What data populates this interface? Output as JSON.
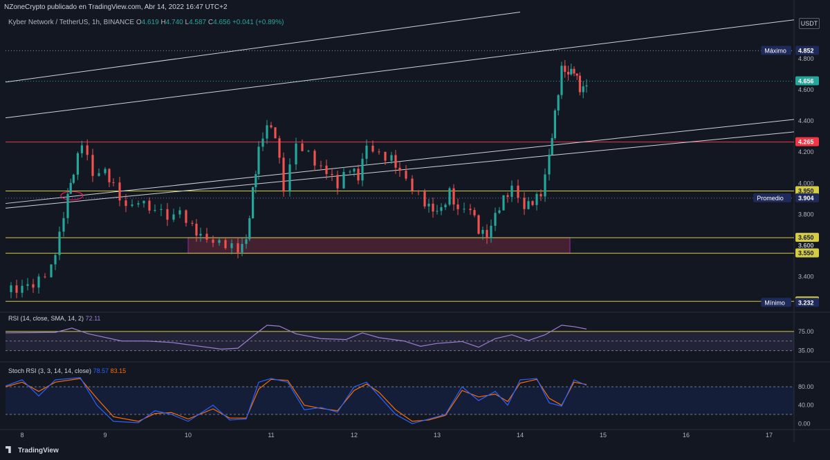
{
  "header": {
    "author_line": "NZoneCrypto publicado en TradingView.com, Abr 14, 2022 16:47 UTC+2"
  },
  "symbol": {
    "name": "Kyber Network / TetherUS, 1h, BINANCE",
    "o_label": "O",
    "o": "4.619",
    "h_label": "H",
    "h": "4.740",
    "l_label": "L",
    "l": "4.587",
    "c_label": "C",
    "c": "4.656",
    "change": "+0.041 (+0.89%)"
  },
  "currency_label": "USDT",
  "footer": {
    "brand": "TradingView"
  },
  "colors": {
    "background": "#131722",
    "up": "#26a69a",
    "down": "#ef5350",
    "yellow": "#d4cc45",
    "red_line": "#f23645",
    "zone": "#6b2a3d",
    "rsi": "#9b7fd4",
    "stoch_k": "#2962ff",
    "stoch_d": "#ff6d00"
  },
  "rsi": {
    "label": "RSI (14, close, SMA, 14, 2)",
    "value": "72.11",
    "ticks": [
      "75.00",
      "35.00"
    ]
  },
  "stoch": {
    "label": "Stoch RSI (3, 3, 14, 14, close)",
    "k_value": "78.57",
    "d_value": "83.15",
    "ticks": [
      "80.00",
      "40.00",
      "0.00"
    ]
  },
  "chart_data": {
    "type": "candlestick",
    "title": "",
    "ylim": [
      3.18,
      5.0
    ],
    "y_ticks": [
      3.4,
      3.6,
      3.8,
      4.0,
      4.2,
      4.4,
      4.6,
      4.8
    ],
    "x_tick_labels": [
      "8",
      "9",
      "10",
      "11",
      "12",
      "13",
      "14",
      "15",
      "16",
      "17"
    ],
    "x_range_days": [
      7.8,
      17.3
    ],
    "price_labels": [
      {
        "label": "Máximo",
        "value": "4.852",
        "style": "dark"
      },
      {
        "label": "",
        "value": "4.656",
        "style": "teal"
      },
      {
        "label": "",
        "value": "4.265",
        "style": "red"
      },
      {
        "label": "",
        "value": "3.950",
        "style": "yellow"
      },
      {
        "label": "Promedio",
        "value": "3.904",
        "style": "dark"
      },
      {
        "label": "",
        "value": "3.650",
        "style": "yellow"
      },
      {
        "label": "",
        "value": "3.600",
        "style": "plain"
      },
      {
        "label": "",
        "value": "3.550",
        "style": "yellow"
      },
      {
        "label": "",
        "value": "3.241",
        "style": "yellow"
      },
      {
        "label": "Mínimo",
        "value": "3.232",
        "style": "dark"
      }
    ],
    "horizontal_lines": [
      {
        "value": 4.265,
        "color": "red"
      },
      {
        "value": 3.95,
        "color": "yellow"
      },
      {
        "value": 3.65,
        "color": "yellow"
      },
      {
        "value": 3.55,
        "color": "yellow"
      },
      {
        "value": 3.241,
        "color": "yellow"
      }
    ],
    "zone": {
      "x": [
        10.0,
        14.6
      ],
      "y": [
        3.55,
        3.65
      ]
    },
    "trendlines": [
      {
        "from": [
          7.8,
          4.65
        ],
        "to": [
          14.0,
          5.1
        ]
      },
      {
        "from": [
          7.8,
          4.42
        ],
        "to": [
          17.3,
          5.05
        ]
      },
      {
        "from": [
          7.8,
          3.87
        ],
        "to": [
          17.3,
          4.41
        ]
      },
      {
        "from": [
          7.8,
          3.84
        ],
        "to": [
          17.3,
          4.33
        ]
      }
    ],
    "series": [
      {
        "name": "",
        "values": [
          [
            7.8,
            3.3
          ],
          [
            8.0,
            3.34
          ],
          [
            8.2,
            3.37
          ],
          [
            8.35,
            3.48
          ],
          [
            8.45,
            3.66
          ],
          [
            8.55,
            3.9
          ],
          [
            8.62,
            4.05
          ],
          [
            8.72,
            4.27
          ],
          [
            8.85,
            4.08
          ],
          [
            9.0,
            4.1
          ],
          [
            9.1,
            3.98
          ],
          [
            9.25,
            3.82
          ],
          [
            9.4,
            3.86
          ],
          [
            9.6,
            3.84
          ],
          [
            9.75,
            3.8
          ],
          [
            9.9,
            3.84
          ],
          [
            10.05,
            3.72
          ],
          [
            10.15,
            3.64
          ],
          [
            10.3,
            3.6
          ],
          [
            10.45,
            3.6
          ],
          [
            10.6,
            3.59
          ],
          [
            10.7,
            3.66
          ],
          [
            10.78,
            3.96
          ],
          [
            10.85,
            4.2
          ],
          [
            10.95,
            4.35
          ],
          [
            11.05,
            4.3
          ],
          [
            11.15,
            3.98
          ],
          [
            11.3,
            4.28
          ],
          [
            11.45,
            4.2
          ],
          [
            11.6,
            4.08
          ],
          [
            11.8,
            4.0
          ],
          [
            11.95,
            4.08
          ],
          [
            12.05,
            4.05
          ],
          [
            12.15,
            4.27
          ],
          [
            12.3,
            4.2
          ],
          [
            12.45,
            4.15
          ],
          [
            12.55,
            4.05
          ],
          [
            12.7,
            3.95
          ],
          [
            12.85,
            3.88
          ],
          [
            12.95,
            3.85
          ],
          [
            13.05,
            3.85
          ],
          [
            13.15,
            3.94
          ],
          [
            13.25,
            3.8
          ],
          [
            13.4,
            3.82
          ],
          [
            13.5,
            3.7
          ],
          [
            13.6,
            3.68
          ],
          [
            13.7,
            3.82
          ],
          [
            13.8,
            3.9
          ],
          [
            13.9,
            3.95
          ],
          [
            14.05,
            3.82
          ],
          [
            14.15,
            3.88
          ],
          [
            14.25,
            3.95
          ],
          [
            14.35,
            4.2
          ],
          [
            14.42,
            4.45
          ],
          [
            14.5,
            4.72
          ],
          [
            14.58,
            4.68
          ],
          [
            14.65,
            4.72
          ],
          [
            14.72,
            4.62
          ],
          [
            14.8,
            4.65
          ]
        ]
      }
    ],
    "rsi_series": [
      [
        7.8,
        72
      ],
      [
        8.4,
        73
      ],
      [
        8.6,
        82
      ],
      [
        8.8,
        70
      ],
      [
        9.2,
        55
      ],
      [
        9.5,
        55
      ],
      [
        9.8,
        52
      ],
      [
        10.1,
        45
      ],
      [
        10.4,
        38
      ],
      [
        10.6,
        40
      ],
      [
        10.8,
        68
      ],
      [
        10.95,
        88
      ],
      [
        11.1,
        86
      ],
      [
        11.3,
        70
      ],
      [
        11.6,
        60
      ],
      [
        11.9,
        58
      ],
      [
        12.1,
        72
      ],
      [
        12.3,
        62
      ],
      [
        12.6,
        55
      ],
      [
        12.8,
        44
      ],
      [
        13.0,
        50
      ],
      [
        13.3,
        54
      ],
      [
        13.5,
        42
      ],
      [
        13.7,
        60
      ],
      [
        13.9,
        68
      ],
      [
        14.1,
        56
      ],
      [
        14.3,
        68
      ],
      [
        14.5,
        88
      ],
      [
        14.65,
        85
      ],
      [
        14.8,
        80
      ]
    ],
    "stoch_k_series": [
      [
        7.8,
        82
      ],
      [
        8.0,
        95
      ],
      [
        8.2,
        60
      ],
      [
        8.4,
        95
      ],
      [
        8.7,
        100
      ],
      [
        8.9,
        40
      ],
      [
        9.1,
        5
      ],
      [
        9.4,
        2
      ],
      [
        9.6,
        28
      ],
      [
        9.8,
        20
      ],
      [
        10.0,
        5
      ],
      [
        10.3,
        40
      ],
      [
        10.5,
        8
      ],
      [
        10.7,
        10
      ],
      [
        10.85,
        90
      ],
      [
        11.0,
        98
      ],
      [
        11.2,
        90
      ],
      [
        11.4,
        30
      ],
      [
        11.6,
        35
      ],
      [
        11.8,
        25
      ],
      [
        12.0,
        80
      ],
      [
        12.15,
        90
      ],
      [
        12.3,
        60
      ],
      [
        12.5,
        20
      ],
      [
        12.7,
        0
      ],
      [
        12.9,
        10
      ],
      [
        13.1,
        20
      ],
      [
        13.3,
        80
      ],
      [
        13.5,
        50
      ],
      [
        13.7,
        70
      ],
      [
        13.85,
        40
      ],
      [
        14.0,
        95
      ],
      [
        14.2,
        98
      ],
      [
        14.35,
        45
      ],
      [
        14.5,
        38
      ],
      [
        14.65,
        95
      ],
      [
        14.8,
        83
      ]
    ],
    "stoch_d_series": [
      [
        7.8,
        80
      ],
      [
        8.0,
        90
      ],
      [
        8.2,
        70
      ],
      [
        8.4,
        90
      ],
      [
        8.7,
        98
      ],
      [
        8.9,
        55
      ],
      [
        9.1,
        15
      ],
      [
        9.4,
        5
      ],
      [
        9.6,
        22
      ],
      [
        9.8,
        24
      ],
      [
        10.0,
        10
      ],
      [
        10.3,
        32
      ],
      [
        10.5,
        12
      ],
      [
        10.7,
        12
      ],
      [
        10.85,
        75
      ],
      [
        11.0,
        96
      ],
      [
        11.2,
        94
      ],
      [
        11.4,
        40
      ],
      [
        11.6,
        33
      ],
      [
        11.8,
        28
      ],
      [
        12.0,
        72
      ],
      [
        12.15,
        86
      ],
      [
        12.3,
        68
      ],
      [
        12.5,
        30
      ],
      [
        12.7,
        5
      ],
      [
        12.9,
        8
      ],
      [
        13.1,
        18
      ],
      [
        13.3,
        72
      ],
      [
        13.5,
        58
      ],
      [
        13.7,
        64
      ],
      [
        13.85,
        48
      ],
      [
        14.0,
        88
      ],
      [
        14.2,
        96
      ],
      [
        14.35,
        55
      ],
      [
        14.5,
        40
      ],
      [
        14.65,
        90
      ],
      [
        14.8,
        85
      ]
    ]
  }
}
